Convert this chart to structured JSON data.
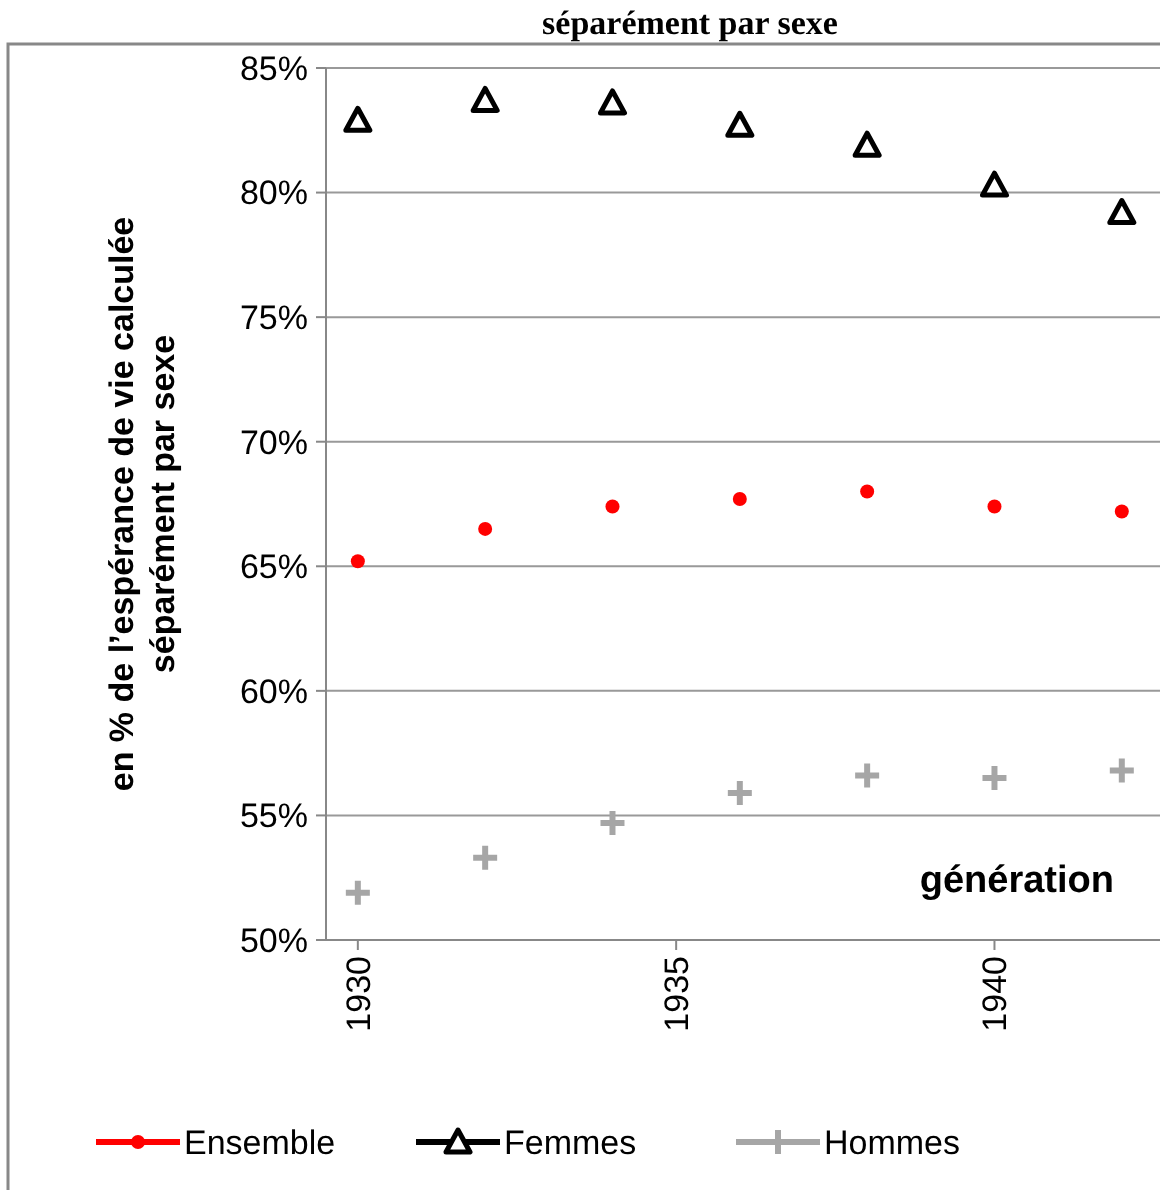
{
  "chart_data": {
    "type": "scatter",
    "title": "séparément par sexe",
    "xlabel": "génération",
    "ylabel": "en % de l’espérance de vie calculée séparément par sexe",
    "x": [
      1930,
      1932,
      1934,
      1936,
      1938,
      1940,
      1942
    ],
    "xlim": [
      1929.5,
      1942.6
    ],
    "xticks": [
      1930,
      1935,
      1940
    ],
    "ylim": [
      50,
      85
    ],
    "yticks": [
      {
        "value": 50,
        "label": "50%"
      },
      {
        "value": 55,
        "label": "55%"
      },
      {
        "value": 60,
        "label": "60%"
      },
      {
        "value": 65,
        "label": "65%"
      },
      {
        "value": 70,
        "label": "70%"
      },
      {
        "value": 75,
        "label": "75%"
      },
      {
        "value": 80,
        "label": "80%"
      },
      {
        "value": 85,
        "label": "85%"
      }
    ],
    "grid": "y",
    "legend": "bottom",
    "series": [
      {
        "name": "Ensemble",
        "color": "#ff0000",
        "marker": "circle",
        "values": [
          65.2,
          66.5,
          67.4,
          67.7,
          68.0,
          67.4,
          67.2
        ]
      },
      {
        "name": "Femmes",
        "color": "#000000",
        "marker": "triangle",
        "values": [
          82.9,
          83.7,
          83.6,
          82.7,
          81.9,
          80.3,
          79.2
        ]
      },
      {
        "name": "Hommes",
        "color": "#a6a6a6",
        "marker": "cross",
        "values": [
          51.9,
          53.3,
          54.7,
          55.9,
          56.6,
          56.5,
          56.8
        ]
      }
    ]
  }
}
